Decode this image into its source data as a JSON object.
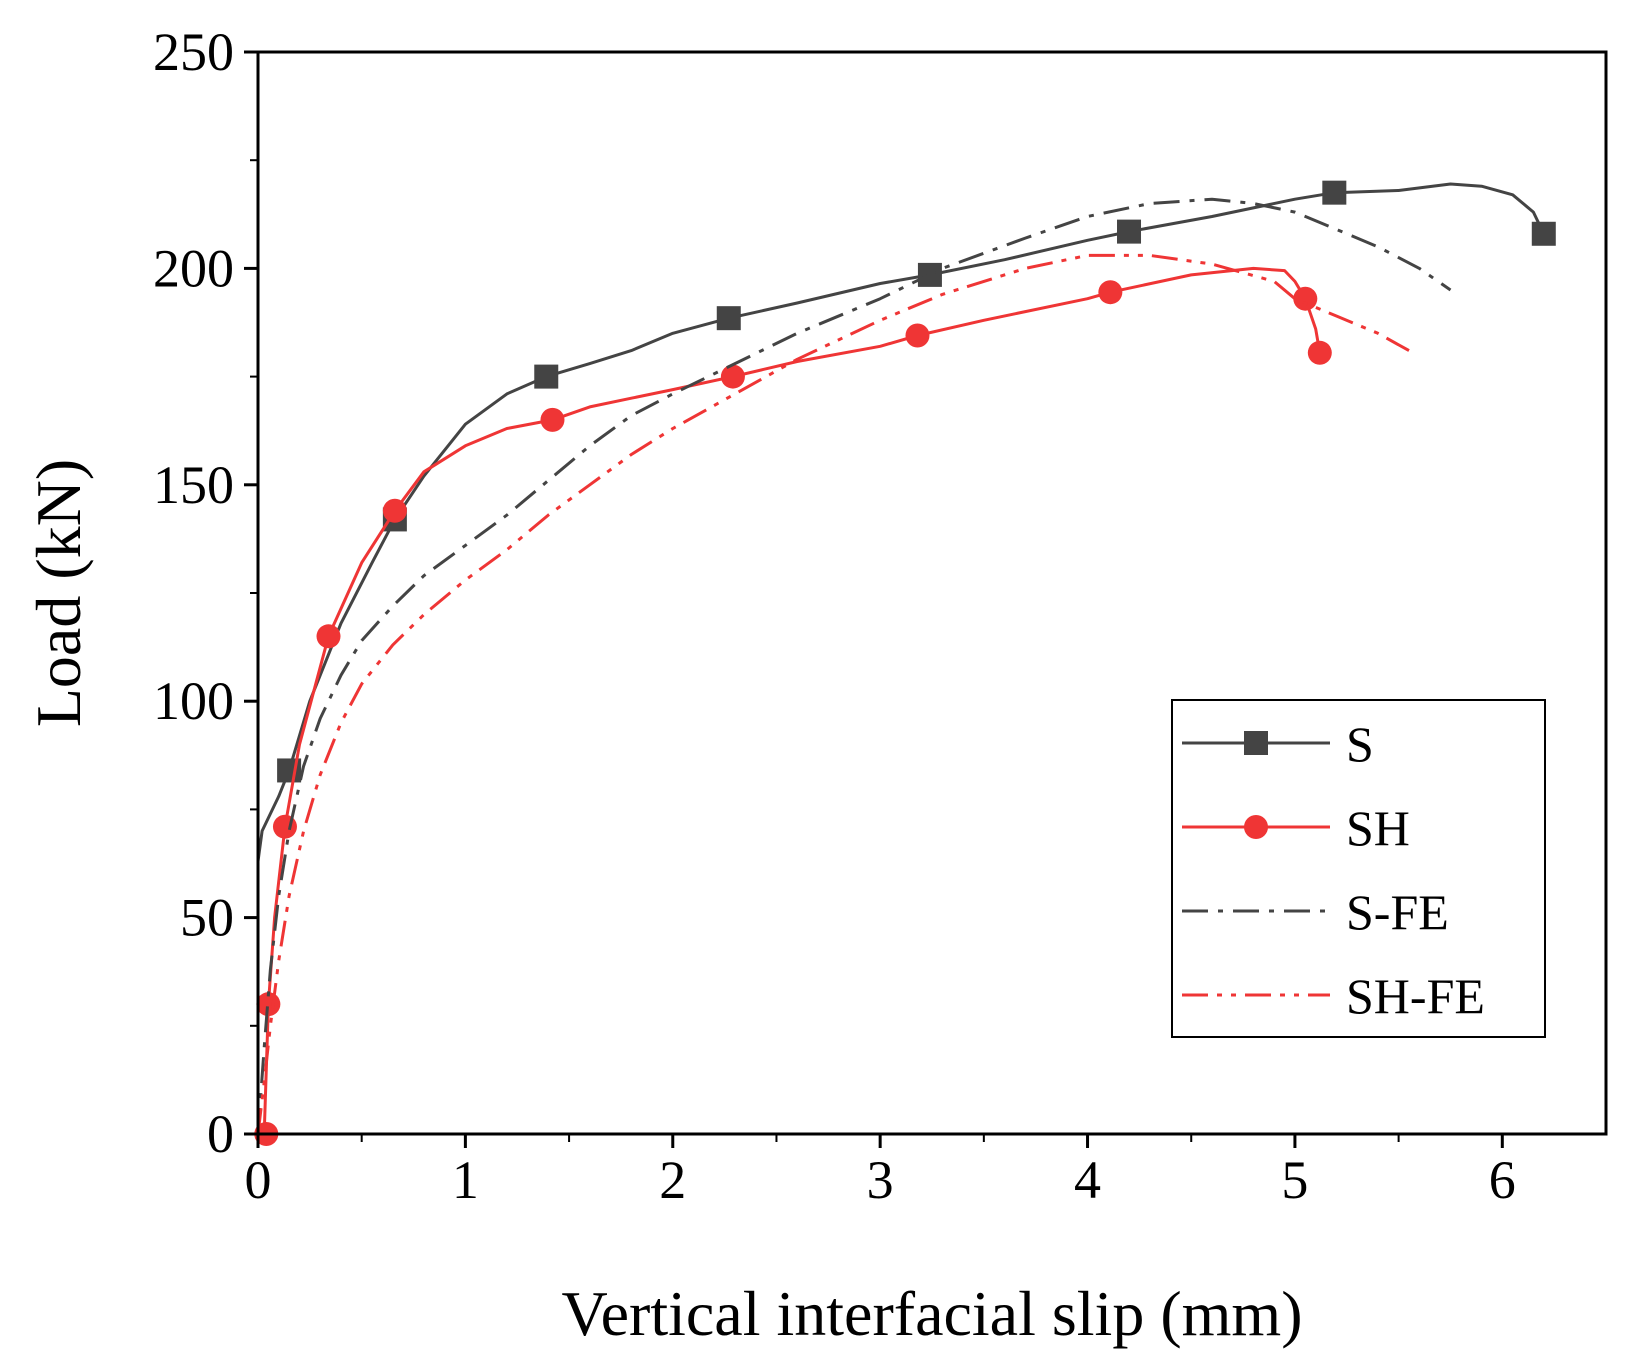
{
  "chart_data": {
    "type": "line",
    "title": "",
    "xlabel": "Vertical interfacial slip (mm)",
    "ylabel": "Load (kN)",
    "xlim": [
      0,
      6.5
    ],
    "ylim": [
      0,
      250
    ],
    "xticks": [
      0,
      1,
      2,
      3,
      4,
      5,
      6
    ],
    "yticks": [
      0,
      50,
      100,
      150,
      200,
      250
    ],
    "x_tick_labels": [
      "0",
      "1",
      "2",
      "3",
      "4",
      "5",
      "6"
    ],
    "y_tick_labels": [
      "0",
      "50",
      "100",
      "150",
      "200",
      "250"
    ],
    "grid": false,
    "legend_position": "bottom-right",
    "series": [
      {
        "name": "S",
        "color": "#444444",
        "line_style": "solid",
        "marker": "square",
        "x": [
          0,
          0.02,
          0.1,
          0.15,
          0.25,
          0.4,
          0.55,
          0.66,
          0.8,
          1.0,
          1.2,
          1.39,
          1.6,
          1.8,
          2.0,
          2.27,
          2.6,
          3.0,
          3.24,
          3.6,
          4.0,
          4.2,
          4.6,
          5.0,
          5.19,
          5.5,
          5.75,
          5.9,
          6.05,
          6.15,
          6.2
        ],
        "y": [
          63,
          70,
          78,
          84,
          100,
          118,
          132,
          142,
          152,
          164,
          171,
          175,
          178,
          181,
          185,
          188.5,
          192,
          196.5,
          198.5,
          202,
          206.5,
          208.5,
          212,
          216,
          217.5,
          218,
          219.5,
          219,
          217,
          213,
          208
        ],
        "marker_x": [
          0.15,
          0.66,
          1.39,
          2.27,
          3.24,
          4.2,
          5.19,
          6.2
        ],
        "marker_y": [
          84,
          142,
          175,
          188.5,
          198.5,
          208.5,
          217.5,
          208
        ]
      },
      {
        "name": "SH",
        "color": "#ef3535",
        "line_style": "solid",
        "marker": "circle",
        "x": [
          0.03,
          0.04,
          0.05,
          0.08,
          0.13,
          0.2,
          0.34,
          0.5,
          0.66,
          0.8,
          1.0,
          1.2,
          1.42,
          1.6,
          1.8,
          2.0,
          2.29,
          2.6,
          3.0,
          3.18,
          3.5,
          4.0,
          4.11,
          4.5,
          4.8,
          4.95,
          5.0,
          5.05,
          5.1,
          5.12
        ],
        "y": [
          0,
          15,
          30,
          50,
          71,
          90,
          115,
          132,
          144,
          153,
          159,
          163,
          165,
          168,
          170,
          172,
          175,
          178.5,
          182,
          184.5,
          188,
          193,
          194.5,
          198.5,
          200,
          199.5,
          197,
          193,
          186,
          180.5
        ],
        "marker_x": [
          0.04,
          0.05,
          0.13,
          0.34,
          0.66,
          1.42,
          2.29,
          3.18,
          4.11,
          5.05,
          5.12
        ],
        "marker_y": [
          0,
          30,
          71,
          115,
          144,
          165,
          175,
          184.5,
          194.5,
          193,
          180.5
        ]
      },
      {
        "name": "S-FE",
        "color": "#444444",
        "line_style": "dashdot",
        "marker": "none",
        "x": [
          0,
          0.03,
          0.06,
          0.1,
          0.15,
          0.22,
          0.3,
          0.4,
          0.5,
          0.65,
          0.8,
          1.0,
          1.2,
          1.4,
          1.6,
          1.8,
          2.0,
          2.3,
          2.6,
          3.0,
          3.3,
          3.7,
          4.0,
          4.3,
          4.6,
          4.8,
          5.0,
          5.2,
          5.4,
          5.6,
          5.75
        ],
        "y": [
          0,
          20,
          38,
          55,
          70,
          85,
          96,
          106,
          114,
          122,
          129,
          136,
          143,
          151,
          159,
          166,
          171,
          178,
          185,
          193,
          200,
          207,
          212,
          215,
          216,
          215,
          213,
          209,
          205,
          200,
          195
        ]
      },
      {
        "name": "SH-FE",
        "color": "#ef3535",
        "line_style": "dashdotdot",
        "marker": "none",
        "x": [
          0,
          0.03,
          0.06,
          0.1,
          0.15,
          0.22,
          0.3,
          0.4,
          0.5,
          0.65,
          0.8,
          1.0,
          1.2,
          1.4,
          1.6,
          1.8,
          2.0,
          2.3,
          2.6,
          3.0,
          3.3,
          3.7,
          4.0,
          4.3,
          4.6,
          4.9,
          5.0,
          5.2,
          5.4,
          5.55
        ],
        "y": [
          0,
          12,
          25,
          40,
          55,
          70,
          83,
          95,
          104,
          113,
          120,
          128,
          135,
          143,
          150,
          157,
          163,
          171,
          179,
          188,
          194,
          200,
          203,
          203,
          201,
          197,
          193,
          189,
          185,
          181
        ]
      }
    ]
  }
}
